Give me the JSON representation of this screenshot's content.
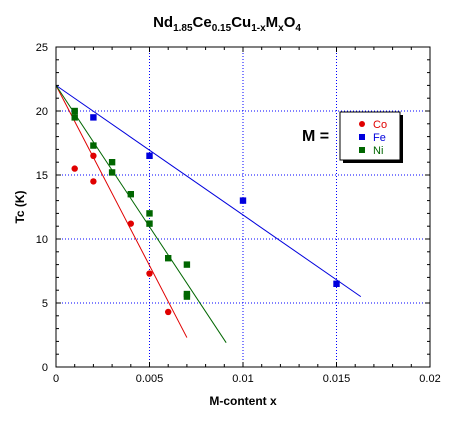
{
  "title": {
    "parts": [
      {
        "t": "Nd",
        "sub": false
      },
      {
        "t": "1.85",
        "sub": true
      },
      {
        "t": "Ce",
        "sub": false
      },
      {
        "t": "0.15",
        "sub": true
      },
      {
        "t": "Cu",
        "sub": false
      },
      {
        "t": "1-x",
        "sub": true
      },
      {
        "t": "M",
        "sub": false
      },
      {
        "t": "x",
        "sub": true
      },
      {
        "t": "O",
        "sub": false
      },
      {
        "t": "4",
        "sub": true
      }
    ]
  },
  "legend_prefix": "M =",
  "chart_data": {
    "type": "scatter",
    "xlabel": "M-content  x",
    "ylabel": "Tc (K)",
    "xlim": [
      0,
      0.02
    ],
    "ylim": [
      0,
      25
    ],
    "x_ticks": [
      0,
      0.005,
      0.01,
      0.015,
      0.02
    ],
    "x_tick_labels": [
      "0",
      "0.005",
      "0.01",
      "0.015",
      "0.02"
    ],
    "y_ticks": [
      0,
      5,
      10,
      15,
      20,
      25
    ],
    "y_tick_labels": [
      "0",
      "5",
      "10",
      "15",
      "20",
      "25"
    ],
    "grid": true,
    "legend_position": "right",
    "series": [
      {
        "name": "Co",
        "color": "#e00000",
        "marker": "circle",
        "points": [
          [
            0.001,
            15.5
          ],
          [
            0.002,
            16.5
          ],
          [
            0.002,
            14.5
          ],
          [
            0.004,
            11.2
          ],
          [
            0.005,
            7.3
          ],
          [
            0.006,
            4.3
          ]
        ],
        "fit": [
          [
            0,
            22
          ],
          [
            0.007,
            2.3
          ]
        ]
      },
      {
        "name": "Fe",
        "color": "#0000dd",
        "marker": "square",
        "points": [
          [
            0.002,
            19.5
          ],
          [
            0.005,
            16.5
          ],
          [
            0.01,
            13.0
          ],
          [
            0.015,
            6.5
          ]
        ],
        "fit": [
          [
            0,
            22
          ],
          [
            0.0163,
            5.5
          ]
        ]
      },
      {
        "name": "Ni",
        "color": "#006600",
        "marker": "square",
        "points": [
          [
            0.001,
            20.0
          ],
          [
            0.001,
            19.5
          ],
          [
            0.002,
            17.3
          ],
          [
            0.003,
            16.0
          ],
          [
            0.003,
            15.2
          ],
          [
            0.004,
            13.5
          ],
          [
            0.005,
            12.0
          ],
          [
            0.005,
            11.2
          ],
          [
            0.006,
            8.5
          ],
          [
            0.007,
            8.0
          ],
          [
            0.007,
            5.7
          ],
          [
            0.007,
            5.5
          ]
        ],
        "fit": [
          [
            0,
            22
          ],
          [
            0.0091,
            1.9
          ]
        ]
      }
    ]
  }
}
